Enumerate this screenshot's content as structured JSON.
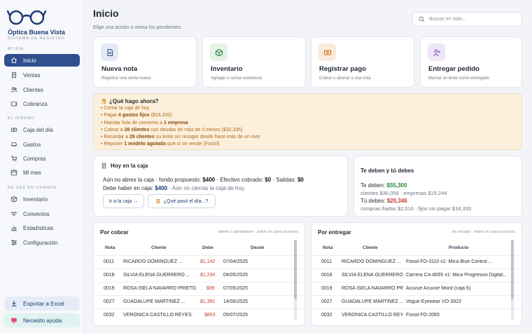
{
  "brand": {
    "name": "Óptica Buena Vista",
    "sub": "SISTEMA DE REGISTRO"
  },
  "sidebar": {
    "sections": [
      "MI DÍA",
      "EL DINERO",
      "DE VEZ EN CUANDO"
    ],
    "items": [
      {
        "label": "Inicio",
        "icon": "home-icon"
      },
      {
        "label": "Ventas",
        "icon": "receipt-icon"
      },
      {
        "label": "Clientes",
        "icon": "users-icon"
      },
      {
        "label": "Cobranza",
        "icon": "wallet-icon"
      },
      {
        "label": "Caja del día",
        "icon": "cash-icon"
      },
      {
        "label": "Gastos",
        "icon": "car-icon"
      },
      {
        "label": "Compras",
        "icon": "cart-icon"
      },
      {
        "label": "Mi mes",
        "icon": "calendar-icon"
      },
      {
        "label": "Inventario",
        "icon": "box-icon"
      },
      {
        "label": "Convenios",
        "icon": "handshake-icon"
      },
      {
        "label": "Estadísticas",
        "icon": "chart-icon"
      },
      {
        "label": "Configuración",
        "icon": "sliders-icon"
      }
    ],
    "export_label": "Exportar a Excel",
    "help_label": "Necesito ayuda"
  },
  "header": {
    "title": "Inicio",
    "subtitle": "Elige una acción o revisa los pendientes.",
    "search_placeholder": "Buscar en todo..."
  },
  "actions": [
    {
      "title": "Nueva nota",
      "sub": "Registrar una venta nueva",
      "color": "#e4e9f6",
      "stroke": "#2f4f8f"
    },
    {
      "title": "Inventario",
      "sub": "Agregar o sumar existencia",
      "color": "#e3f3e5",
      "stroke": "#2f8a45"
    },
    {
      "title": "Registrar pago",
      "sub": "Cobrar o abonar a una nota",
      "color": "#fbeadb",
      "stroke": "#c8701e"
    },
    {
      "title": "Entregar pedido",
      "sub": "Marcar un lente como entregado",
      "color": "#efe6f8",
      "stroke": "#7b49b5"
    }
  ],
  "todo": {
    "title": "¿Qué hago ahora?",
    "items": [
      [
        "Cerrar la caja de hoy",
        "",
        ""
      ],
      [
        "Pagar ",
        "4 gastos fijos",
        " ($18,330)"
      ],
      [
        "Mandar lista de convenio a ",
        "1 empresa",
        ""
      ],
      [
        "Cobrar a ",
        "26 clientes",
        " con deudas de más de 3 meses ($32,335)"
      ],
      [
        "Recordar a ",
        "29 clientes",
        " su lente sin recoger desde hace más de un mes"
      ],
      [
        "Reponer ",
        "1 modelo agotado",
        " que sí se vende (Fossil)"
      ]
    ]
  },
  "caja": {
    "title": "Hoy en la caja",
    "l1_a": "Aún no abres la caja · fondo propuesto: ",
    "l1_b": "$400",
    "l1_c": " · Efectivo cobrado: ",
    "l1_d": "$0",
    "l1_e": " · Salidas: ",
    "l1_f": "$0",
    "l2_a": "Debe haber en caja: ",
    "l2_b": "$400",
    "l2_c": " · Aún no cierras la caja de hoy.",
    "btn1": "Ir a la caja →",
    "btn2": "¿Qué pasó el día...?"
  },
  "deben": {
    "title": "Te deben y tú debes",
    "te_deben_label": "Te deben: ",
    "te_deben": "$55,300",
    "te_deben_sub": "clientes $36,056 · empresas $19,244",
    "tu_debes_label": "Tú debes: ",
    "tu_debes": "$20,346",
    "tu_debes_sub": "compras fiadas $2,016 · fijos sin pagar $18,330"
  },
  "cobrar": {
    "title": "Por cobrar",
    "hint": "deben o adelantaron · doble clic para acciones",
    "columns": [
      "Nota",
      "Cliente",
      "Debe",
      "Desde"
    ],
    "rows": [
      [
        "0011",
        "RICARDO DOMÍNGUEZ ...",
        "$1,142",
        "07/04/2025"
      ],
      [
        "0018",
        "SILVIA ELENA GUERRERO ...",
        "$1,234",
        "04/05/2025"
      ],
      [
        "0019",
        "ROSA ISELA NAVARRO PRIETO",
        "$99",
        "07/05/2025"
      ],
      [
        "0027",
        "GUADALUPE MARTÍNEZ ...",
        "$1,391",
        "14/06/2025"
      ],
      [
        "0032",
        "VERÓNICA CASTILLO REYES",
        "$853",
        "05/07/2025"
      ]
    ]
  },
  "entregar": {
    "title": "Por entregar",
    "hint": "sin recoger · doble clic para acciones",
    "columns": [
      "Nota",
      "Cliente",
      "Producto"
    ],
    "rows": [
      [
        "0011",
        "RICARDO DOMÍNGUEZ ...",
        "Fossil FO-3110 x1: Mica Blue Control ..."
      ],
      [
        "0018",
        "SILVIA ELENA GUERRERO ...",
        "Carrera CA-8055 x1: Mica Progresivo Digital..."
      ],
      [
        "0019",
        "ROSA ISELA NAVARRO PRIETO",
        "Acuvue Acuvue Moist (caja 6)"
      ],
      [
        "0027",
        "GUADALUPE MARTÍNEZ ...",
        "Vogue Eyewear VO-3922"
      ],
      [
        "0032",
        "VERÓNICA CASTILLO REYES",
        "Fossil FO-2065"
      ]
    ]
  }
}
